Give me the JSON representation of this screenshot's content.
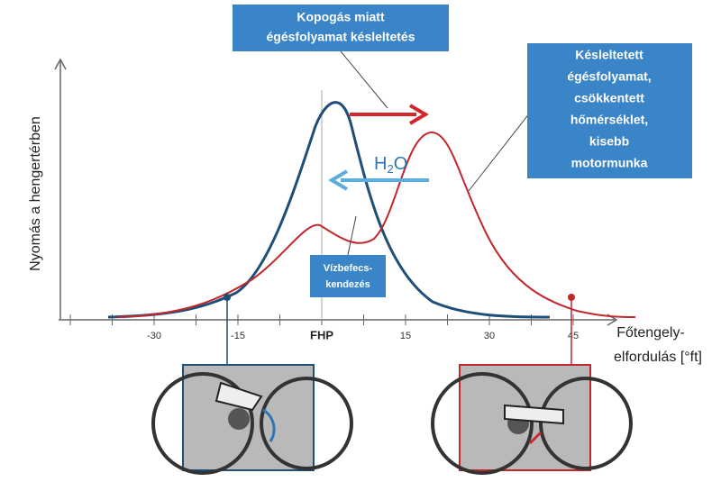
{
  "y_axis": {
    "label": "Nyomás a hengertérben"
  },
  "x_axis": {
    "ticks": [
      -30,
      -15,
      15,
      30,
      45
    ],
    "origin_label": "FHP",
    "label": [
      "Főtengely-",
      "elfordulás [°ft]"
    ]
  },
  "knock_box": {
    "lines": [
      "Kopogás miatt",
      "égésfolyamat késleltetés"
    ]
  },
  "result_box": {
    "lines": [
      "Késleltetett",
      "égésfolyamat,",
      "csökkentett",
      "hőmérséklet,",
      "kisebb",
      "motormunka"
    ]
  },
  "injection_box": {
    "lines": [
      "Vízbefecs-",
      "kendezés"
    ]
  },
  "water_label": {
    "main": "H",
    "sub": "2",
    "end": "O"
  }
}
